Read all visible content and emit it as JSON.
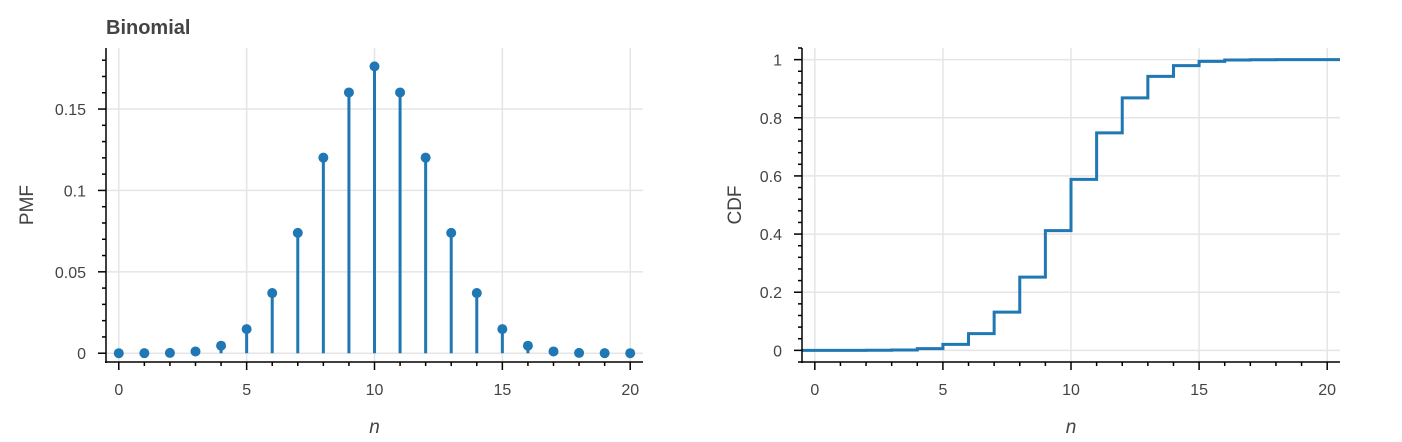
{
  "chart_data": [
    {
      "type": "stem",
      "title": "Binomial",
      "xlabel": "n",
      "ylabel": "PMF",
      "xlim": [
        -0.5,
        20.5
      ],
      "ylim": [
        -0.0054,
        0.1875
      ],
      "x_ticks": [
        0,
        5,
        10,
        15,
        20
      ],
      "x_tick_labels": [
        "0",
        "5",
        "10",
        "15",
        "20"
      ],
      "y_ticks": [
        0,
        0.05,
        0.1,
        0.15
      ],
      "y_tick_labels": [
        "0",
        "0.05",
        "0.1",
        "0.15"
      ],
      "grid": true,
      "color": "#1f77b4",
      "x": [
        0,
        1,
        2,
        3,
        4,
        5,
        6,
        7,
        8,
        9,
        10,
        11,
        12,
        13,
        14,
        15,
        16,
        17,
        18,
        19,
        20
      ],
      "values": [
        1e-06,
        1.9e-05,
        0.000181,
        0.001087,
        0.004621,
        0.014786,
        0.036964,
        0.073929,
        0.120134,
        0.160179,
        0.176197,
        0.160179,
        0.120134,
        0.073929,
        0.036964,
        0.014786,
        0.004621,
        0.001087,
        0.000181,
        1.9e-05,
        1e-06
      ]
    },
    {
      "type": "step",
      "title": "",
      "xlabel": "n",
      "ylabel": "CDF",
      "xlim": [
        -0.5,
        20.5
      ],
      "ylim": [
        -0.04,
        1.04
      ],
      "x_ticks": [
        0,
        5,
        10,
        15,
        20
      ],
      "x_tick_labels": [
        "0",
        "5",
        "10",
        "15",
        "20"
      ],
      "y_ticks": [
        0,
        0.2,
        0.4,
        0.6,
        0.8,
        1
      ],
      "y_tick_labels": [
        "0",
        "0.2",
        "0.4",
        "0.6",
        "0.8",
        "1"
      ],
      "grid": true,
      "color": "#1f77b4",
      "x": [
        0,
        1,
        2,
        3,
        4,
        5,
        6,
        7,
        8,
        9,
        10,
        11,
        12,
        13,
        14,
        15,
        16,
        17,
        18,
        19,
        20
      ],
      "values": [
        1e-06,
        2e-05,
        0.000201,
        0.001288,
        0.005909,
        0.020695,
        0.057659,
        0.131588,
        0.251722,
        0.411901,
        0.588099,
        0.748278,
        0.868412,
        0.942341,
        0.979305,
        0.994091,
        0.998712,
        0.999799,
        0.99998,
        0.999999,
        1.0
      ]
    }
  ]
}
